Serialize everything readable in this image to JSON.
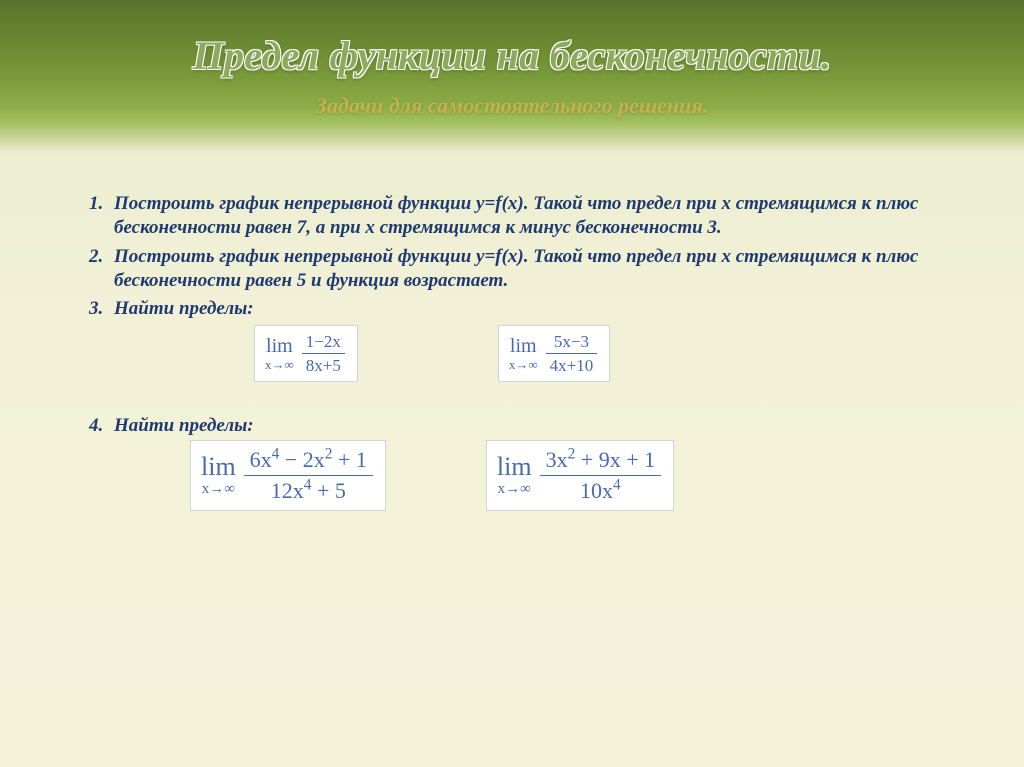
{
  "colors": {
    "background_top": "#59722a",
    "background_bottom": "#f4f3da",
    "title_fill": "#8ea85e",
    "title_outline": "#ffffff",
    "subtitle": "#c4b24e",
    "body_text": "#1f3a6e",
    "formula_text": "#4a6aa8",
    "formula_bg": "#ffffff",
    "formula_border": "#cfd3da"
  },
  "typography": {
    "title_fontsize": 40,
    "subtitle_fontsize": 22,
    "body_fontsize": 19,
    "formula_small_fontsize": 17,
    "formula_big_fontsize": 22,
    "italic": true,
    "bold_body": true,
    "font_family": "Times New Roman"
  },
  "title": "Предел функции на бесконечности.",
  "subtitle": "Задачи для самостоятельного решения.",
  "problems": {
    "p1": "Построить график непрерывной функции y=f(x). Такой что предел при x стремящимся к плюс бесконечности равен 7, а при x стремящимся к минус бесконечности 3.",
    "p2": " Построить график непрерывной функции y=f(x). Такой что предел при x стремящимся к плюс бесконечности равен 5 и функция возрастает.",
    "p3": "Найти пределы:",
    "p4": "Найти пределы:"
  },
  "limits_row1": [
    {
      "approach": "x→∞",
      "numerator": "1−2x",
      "denominator": "8x+5"
    },
    {
      "approach": "x→∞",
      "numerator": "5x−3",
      "denominator": "4x+10"
    }
  ],
  "limits_row2": [
    {
      "approach": "x→∞",
      "numerator": "6x⁴ − 2x² + 1",
      "denominator": "12x⁴ + 5"
    },
    {
      "approach": "x→∞",
      "numerator": "3x² + 9x + 1",
      "denominator": "10x⁴"
    }
  ],
  "lim_label": "lim"
}
